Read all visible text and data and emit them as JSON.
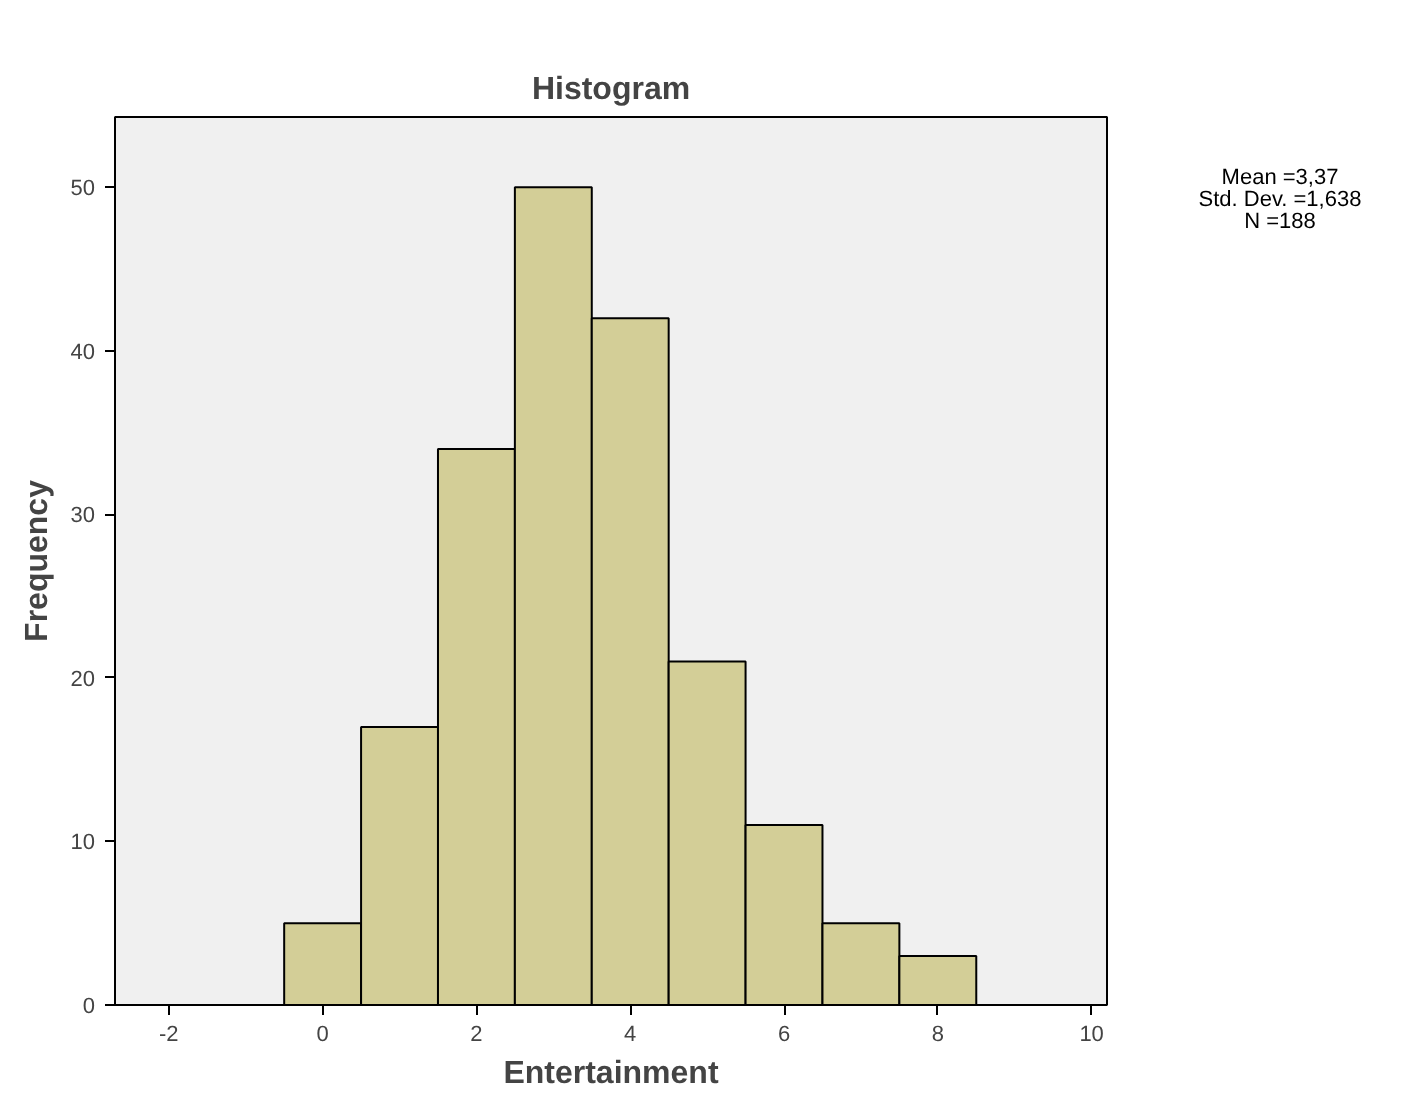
{
  "chart_data": {
    "type": "histogram",
    "title": "Histogram",
    "xlabel": "Entertainment",
    "ylabel": "Frequency",
    "bins": [
      -0.5,
      0.5,
      1.5,
      2.5,
      3.5,
      4.5,
      5.5,
      6.5,
      7.5,
      8.5
    ],
    "values": [
      5,
      17,
      34,
      50,
      42,
      21,
      11,
      5,
      3
    ],
    "color": "#d3ce97",
    "xlim": [
      -2.7,
      10.2
    ],
    "xticks": [
      -2,
      0,
      2,
      4,
      6,
      8,
      10
    ],
    "ylim": [
      0,
      54.3
    ],
    "yticks": [
      0,
      10,
      20,
      30,
      40,
      50
    ],
    "grid": false,
    "annotations": [
      "Mean =3,37",
      "Std. Dev. =1,638",
      "N =188"
    ]
  }
}
